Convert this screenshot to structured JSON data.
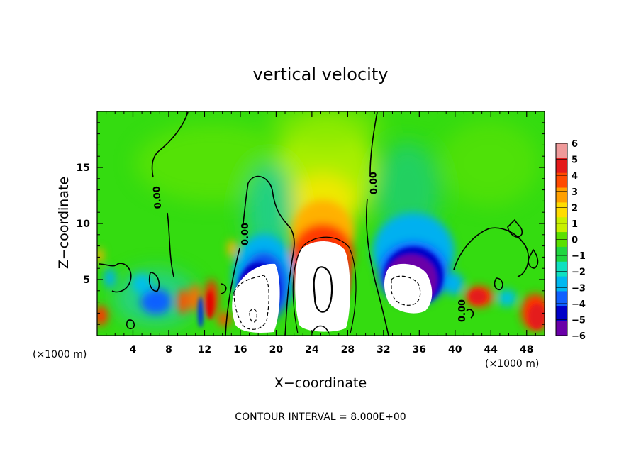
{
  "chart_data": {
    "type": "heatmap",
    "title": "vertical velocity",
    "xlabel": "X−coordinate",
    "ylabel": "Z−coordinate",
    "x_unit_label": "(×1000 m)",
    "x_unit_label_right": "(×1000 m)",
    "x_ticks": [
      "4",
      "8",
      "12",
      "16",
      "20",
      "24",
      "28",
      "32",
      "36",
      "40",
      "44",
      "48"
    ],
    "x_tick_values": [
      4,
      8,
      12,
      16,
      20,
      24,
      28,
      32,
      36,
      40,
      44,
      48
    ],
    "y_ticks": [
      "5",
      "10",
      "15"
    ],
    "y_tick_values": [
      5,
      10,
      15
    ],
    "xlim": [
      0,
      50
    ],
    "ylim": [
      0,
      20
    ],
    "contour_labels": [
      "0.00",
      "0.00",
      "0.00",
      "0.00"
    ],
    "footer": "CONTOUR INTERVAL = 8.000E+00",
    "colorbar": {
      "labels": [
        "6",
        "5",
        "4",
        "3",
        "2",
        "1",
        "0",
        "−1",
        "−2",
        "−3",
        "−4",
        "−5",
        "−6"
      ],
      "min": -6,
      "max": 6,
      "colors": [
        "#ef9a9a",
        "#e41a1a",
        "#ff4a00",
        "#ffa000",
        "#ffdc00",
        "#c8f000",
        "#5ae000",
        "#20d640",
        "#10e0c0",
        "#00b8f0",
        "#1060ff",
        "#0000c8",
        "#6a00a8"
      ]
    },
    "features": [
      {
        "kind": "updraft",
        "x_center": 25.5,
        "z_center": 4.8,
        "peak": "> 6",
        "contours": [
          8,
          16
        ]
      },
      {
        "kind": "downdraft",
        "x_center": 19,
        "z_center": 3.5,
        "peak": "< -6",
        "contours": [
          -8,
          -16
        ]
      },
      {
        "kind": "downdraft",
        "x_center": 35,
        "z_center": 4.5,
        "peak": "< -6",
        "contours": [
          -8
        ]
      },
      {
        "kind": "updraft",
        "x_center": 13,
        "z_center": 2.8,
        "peak": "5"
      },
      {
        "kind": "updraft",
        "x_center": 42.8,
        "z_center": 3.3,
        "peak": "4"
      },
      {
        "kind": "updraft",
        "x_center": 49.2,
        "z_center": 2.2,
        "peak": "> 6"
      }
    ]
  }
}
